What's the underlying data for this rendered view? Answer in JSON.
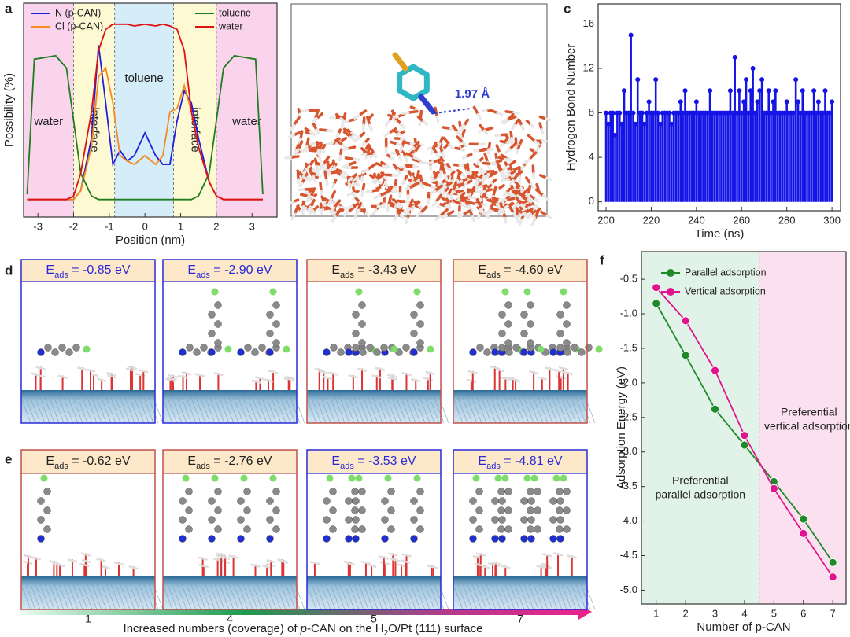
{
  "chart_data": [
    {
      "type": "line",
      "panel_label": "a",
      "xlabel": "Position (nm)",
      "ylabel": "Possibility (%)",
      "xlim": [
        -3.4,
        3.7
      ],
      "ylim": [
        -0.1,
        1.12
      ],
      "xticks": [
        -3,
        -2,
        -1,
        0,
        1,
        2,
        3
      ],
      "legend": "top",
      "regions": [
        {
          "label": "water",
          "range": [
            -3.4,
            -2
          ],
          "color": "#f9d4ec"
        },
        {
          "label": "interface",
          "range": [
            -2,
            -0.85
          ],
          "color": "#fdf9d2"
        },
        {
          "label": "toluene",
          "range": [
            -0.85,
            0.8
          ],
          "color": "#d5edf9"
        },
        {
          "label": "interface",
          "range": [
            0.8,
            2
          ],
          "color": "#fdf9d2"
        },
        {
          "label": "water",
          "range": [
            2,
            3.7
          ],
          "color": "#f9d4ec"
        }
      ],
      "x": [
        -3.3,
        -3.1,
        -2.5,
        -2.2,
        -2,
        -1.8,
        -1.5,
        -1.3,
        -1.1,
        -0.9,
        -0.7,
        -0.5,
        -0.3,
        0,
        0.3,
        0.5,
        0.7,
        0.9,
        1.1,
        1.3,
        1.5,
        1.8,
        2,
        2.2,
        2.5,
        3.1,
        3.3
      ],
      "series": [
        {
          "name": "N (p-CAN)",
          "color": "#1f1fe0",
          "values": [
            0,
            0,
            0,
            0,
            0,
            0.05,
            0.35,
            0.88,
            0.55,
            0.2,
            0.28,
            0.22,
            0.25,
            0.38,
            0.25,
            0.2,
            0.2,
            0.45,
            0.62,
            0.55,
            0.35,
            0.1,
            0.02,
            0,
            0,
            0,
            0
          ]
        },
        {
          "name": "Cl (p-CAN)",
          "color": "#f58a1f",
          "values": [
            0,
            0,
            0,
            0,
            0,
            0.05,
            0.3,
            0.7,
            0.75,
            0.55,
            0.25,
            0.22,
            0.2,
            0.25,
            0.2,
            0.25,
            0.5,
            0.52,
            0.65,
            0.5,
            0.3,
            0.1,
            0.02,
            0,
            0,
            0,
            0
          ]
        },
        {
          "name": "toluene",
          "color": "#1e7d1e",
          "values": [
            0.03,
            0.8,
            0.82,
            0.75,
            0.45,
            0.15,
            0.02,
            0,
            0,
            0,
            0,
            0,
            0,
            0,
            0,
            0,
            0,
            0,
            0,
            0,
            0.02,
            0.15,
            0.45,
            0.75,
            0.82,
            0.8,
            0.03
          ]
        },
        {
          "name": "water",
          "color": "#e01010",
          "values": [
            0,
            0,
            0,
            0,
            0.02,
            0.15,
            0.5,
            0.85,
            0.97,
            1.0,
            1.0,
            1.0,
            0.99,
            1.0,
            0.99,
            1.0,
            0.99,
            0.97,
            0.85,
            0.5,
            0.3,
            0.1,
            0.02,
            0,
            0,
            0,
            0
          ]
        }
      ]
    },
    {
      "type": "stem",
      "panel_label": "c",
      "xlabel": "Time (ns)",
      "ylabel": "Hydrogen Bond Number",
      "xlim": [
        196.5,
        303.8
      ],
      "ylim": [
        -0.8,
        17.8
      ],
      "xticks": [
        200,
        220,
        240,
        260,
        280,
        300
      ],
      "yticks": [
        0,
        4,
        8,
        12,
        16
      ],
      "x": [
        200,
        201,
        202,
        203,
        204,
        205,
        206,
        207,
        208,
        209,
        210,
        211,
        212,
        213,
        214,
        215,
        216,
        217,
        218,
        219,
        220,
        221,
        222,
        223,
        224,
        225,
        226,
        227,
        228,
        229,
        230,
        231,
        232,
        233,
        234,
        235,
        236,
        237,
        238,
        239,
        240,
        241,
        242,
        243,
        244,
        245,
        246,
        247,
        248,
        249,
        250,
        251,
        252,
        253,
        254,
        255,
        256,
        257,
        258,
        259,
        260,
        261,
        262,
        263,
        264,
        265,
        266,
        267,
        268,
        269,
        270,
        271,
        272,
        273,
        274,
        275,
        276,
        277,
        278,
        279,
        280,
        281,
        282,
        283,
        284,
        285,
        286,
        287,
        288,
        289,
        290,
        291,
        292,
        293,
        294,
        295,
        296,
        297,
        298,
        299,
        300
      ],
      "series": [
        {
          "name": "hydrogen bonds",
          "color": "#1414e6",
          "values": [
            8,
            7,
            8,
            8,
            6,
            8,
            8,
            7,
            10,
            8,
            8,
            15,
            8,
            7,
            11,
            8,
            8,
            7,
            8,
            9,
            8,
            8,
            11,
            8,
            7,
            8,
            8,
            8,
            8,
            7,
            8,
            8,
            8,
            9,
            8,
            10,
            8,
            8,
            8,
            8,
            9,
            8,
            8,
            8,
            8,
            8,
            10,
            8,
            8,
            8,
            8,
            8,
            8,
            8,
            8,
            10,
            8,
            13,
            8,
            10,
            8,
            9,
            11,
            8,
            10,
            12,
            8,
            9,
            10,
            11,
            8,
            8,
            10,
            8,
            9,
            10,
            8,
            8,
            8,
            8,
            9,
            8,
            8,
            8,
            11,
            9,
            8,
            10,
            8,
            8,
            8,
            8,
            10,
            8,
            9,
            8,
            8,
            10,
            8,
            8,
            9
          ]
        }
      ]
    },
    {
      "type": "line",
      "markers": true,
      "panel_label": "f",
      "xlabel": "Number of p-CAN",
      "ylabel": "Adsorption Energy (eV)",
      "xlim": [
        0.5,
        7.45
      ],
      "ylim": [
        -5.2,
        -0.1
      ],
      "xticks": [
        1,
        2,
        3,
        4,
        5,
        6,
        7
      ],
      "yticks": [
        {
          "value": -0.5,
          "label": "-0.5"
        },
        {
          "value": -1,
          "label": "-1.0"
        },
        {
          "value": -1.5,
          "label": "-1.5"
        },
        {
          "value": -2,
          "label": "-2.0"
        },
        {
          "value": -2.5,
          "label": "-2.5"
        },
        {
          "value": -3,
          "label": "-3.0"
        },
        {
          "value": -3.5,
          "label": "-3.5"
        },
        {
          "value": -4,
          "label": "-4.0"
        },
        {
          "value": -4.5,
          "label": "-4.5"
        },
        {
          "value": -5,
          "label": "-5.0"
        }
      ],
      "legend": "top-left",
      "regions": [
        {
          "label": [
            "Preferential",
            "parallel adsorption"
          ],
          "range": [
            0.5,
            4.5
          ],
          "color": "#e1f3e8"
        },
        {
          "label": [
            "Preferential",
            "vertical adsorption"
          ],
          "range": [
            4.5,
            7.45
          ],
          "color": "#fbe1f0"
        }
      ],
      "x": [
        1,
        2,
        3,
        4,
        5,
        6,
        7
      ],
      "series": [
        {
          "name": "Parallel adsorption",
          "color": "#1f8a2a",
          "values": [
            -0.85,
            -1.6,
            -2.38,
            -2.9,
            -3.43,
            -3.97,
            -4.6
          ]
        },
        {
          "name": "Vertical adsorption",
          "color": "#e0148c",
          "values": [
            -0.62,
            -1.1,
            -1.82,
            -2.76,
            -3.53,
            -4.18,
            -4.81
          ]
        }
      ]
    }
  ],
  "snapshot": {
    "panel_label": "b",
    "distance": "1.97 Å"
  },
  "structures": {
    "energy_symbol": "E",
    "energy_subscript": "ads",
    "rows": [
      {
        "panel_label": "d",
        "boxes": [
          {
            "energy": " = -0.85 eV",
            "color": "#2a2ad8"
          },
          {
            "energy": " = -2.90 eV",
            "color": "#2a2ad8"
          },
          {
            "energy": " = -3.43 eV",
            "color": "#c0504d"
          },
          {
            "energy": " = -4.60 eV",
            "color": "#c0504d"
          }
        ]
      },
      {
        "panel_label": "e",
        "boxes": [
          {
            "energy": " = -0.62 eV",
            "color": "#c0504d"
          },
          {
            "energy": " = -2.76 eV",
            "color": "#c0504d"
          },
          {
            "energy": " = -3.53 eV",
            "color": "#2a2ad8"
          },
          {
            "energy": " = -4.81 eV",
            "color": "#2a2ad8"
          }
        ]
      }
    ],
    "counts": [
      1,
      4,
      5,
      7
    ],
    "caption": [
      "Increased numbers (coverage) of ",
      "p",
      "-CAN on the H",
      "2",
      "O/Pt (111) surface"
    ]
  }
}
